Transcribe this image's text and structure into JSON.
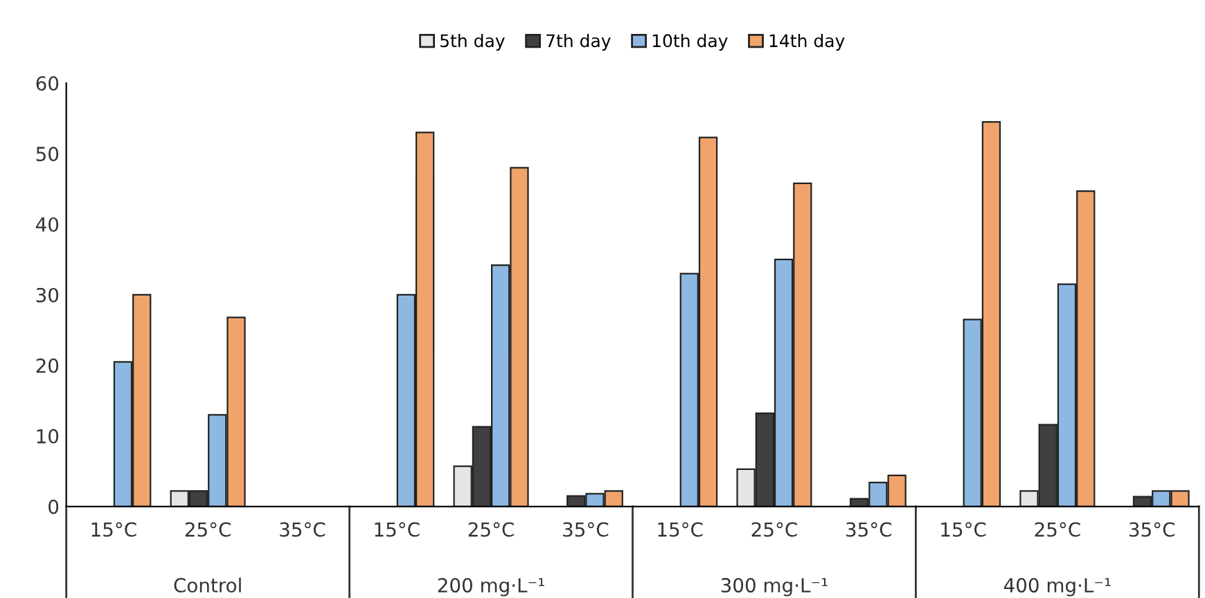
{
  "chart_data": {
    "type": "bar",
    "categories": [
      "15°C",
      "25°C",
      "35°C",
      "15°C",
      "25°C",
      "35°C",
      "15°C",
      "25°C",
      "35°C",
      "15°C",
      "25°C",
      "35°C"
    ],
    "annotations": [
      "Control",
      "200 mg·L⁻¹",
      "300 mg·L⁻¹",
      "400 mg·L⁻¹"
    ],
    "series": [
      {
        "name": "5th day",
        "color": "#e6e6e6",
        "values": [
          0,
          2.2,
          0,
          0,
          5.7,
          0,
          0,
          5.3,
          0,
          0,
          2.2,
          0
        ]
      },
      {
        "name": "7th day",
        "color": "#404040",
        "values": [
          0,
          2.2,
          0,
          0,
          11.3,
          1.5,
          0,
          13.2,
          1.1,
          0,
          11.6,
          1.4
        ]
      },
      {
        "name": "10th day",
        "color": "#8db8e2",
        "values": [
          20.5,
          13,
          0,
          30,
          34.2,
          1.8,
          33,
          35,
          3.4,
          26.5,
          31.5,
          2.2
        ]
      },
      {
        "name": "14th day",
        "color": "#f0a46c",
        "values": [
          30,
          26.8,
          0,
          53,
          48,
          2.2,
          52.3,
          45.8,
          4.4,
          54.5,
          44.7,
          2.2
        ]
      }
    ],
    "ylim": [
      0,
      60
    ],
    "yticks": [
      0,
      10,
      20,
      30,
      40,
      50,
      60
    ],
    "grid": false,
    "legend": "top"
  }
}
